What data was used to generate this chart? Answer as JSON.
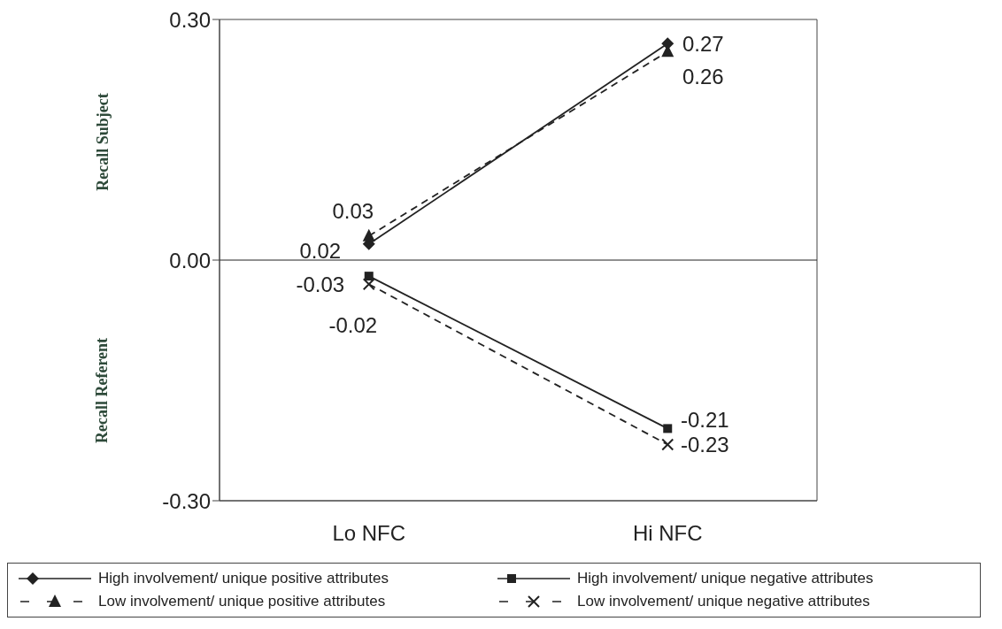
{
  "chart_data": {
    "type": "line",
    "ylabel": "Recall Subject",
    "annotations": [
      "Recall Referent"
    ],
    "categories": [
      "Lo NFC",
      "Hi NFC"
    ],
    "series": [
      {
        "name": "High involvement/ unique positive attributes",
        "color": "#222222",
        "values": [
          0.02,
          0.27
        ],
        "marker": "diamond",
        "line_style": "solid"
      },
      {
        "name": "Low involvement/ unique positive attributes",
        "color": "#222222",
        "values": [
          0.03,
          0.26
        ],
        "marker": "triangle",
        "line_style": "dashed"
      },
      {
        "name": "High involvement/ unique negative attributes",
        "color": "#222222",
        "values": [
          -0.02,
          -0.21
        ],
        "marker": "square",
        "line_style": "solid"
      },
      {
        "name": "Low involvement/ unique negative attributes",
        "color": "#222222",
        "values": [
          -0.03,
          -0.23
        ],
        "marker": "cross",
        "line_style": "dashed"
      }
    ],
    "ylim": [
      -0.3,
      0.3
    ],
    "yticks": [
      {
        "value": -0.3,
        "label": "-0.30"
      },
      {
        "value": 0,
        "label": "0.00"
      },
      {
        "value": 0.3,
        "label": "0.30"
      }
    ],
    "ref_lines": [
      {
        "axis": "y",
        "value": 0,
        "color": "#222222"
      }
    ],
    "data_labels": true,
    "grid": false,
    "legend": "bottom"
  }
}
